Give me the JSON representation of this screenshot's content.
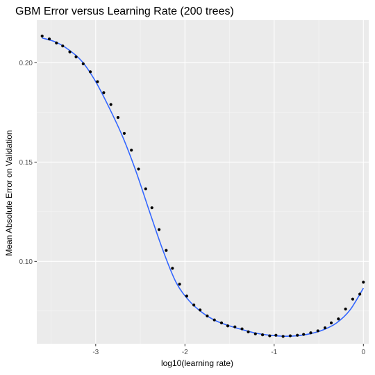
{
  "chart_data": {
    "type": "scatter",
    "title": "GBM Error versus Learning Rate (200 trees)",
    "xlabel": "log10(learning rate)",
    "ylabel": "Mean Absolute Error on Validation",
    "xlim": [
      -3.66,
      0.06
    ],
    "ylim": [
      0.0585,
      0.2215
    ],
    "x_ticks": [
      -3,
      -2,
      -1,
      0
    ],
    "x_tick_labels": [
      "-3",
      "-2",
      "-1",
      "0"
    ],
    "y_ticks": [
      0.1,
      0.15,
      0.2
    ],
    "y_tick_labels": [
      "0.10",
      "0.15",
      "0.20"
    ],
    "grid": true,
    "legend": "none",
    "series": [
      {
        "kind": "points",
        "points": [
          [
            -3.6,
            0.2135
          ],
          [
            -3.52,
            0.212
          ],
          [
            -3.44,
            0.21
          ],
          [
            -3.37,
            0.2085
          ],
          [
            -3.29,
            0.2055
          ],
          [
            -3.22,
            0.203
          ],
          [
            -3.14,
            0.1995
          ],
          [
            -3.06,
            0.1955
          ],
          [
            -2.98,
            0.1905
          ],
          [
            -2.91,
            0.185
          ],
          [
            -2.83,
            0.179
          ],
          [
            -2.75,
            0.1725
          ],
          [
            -2.68,
            0.1645
          ],
          [
            -2.6,
            0.156
          ],
          [
            -2.52,
            0.1465
          ],
          [
            -2.44,
            0.1365
          ],
          [
            -2.37,
            0.127
          ],
          [
            -2.29,
            0.116
          ],
          [
            -2.21,
            0.1055
          ],
          [
            -2.14,
            0.0965
          ],
          [
            -2.06,
            0.0885
          ],
          [
            -1.98,
            0.0825
          ],
          [
            -1.9,
            0.078
          ],
          [
            -1.83,
            0.0755
          ],
          [
            -1.75,
            0.0725
          ],
          [
            -1.67,
            0.0705
          ],
          [
            -1.59,
            0.069
          ],
          [
            -1.52,
            0.0675
          ],
          [
            -1.44,
            0.067
          ],
          [
            -1.36,
            0.066
          ],
          [
            -1.29,
            0.0645
          ],
          [
            -1.21,
            0.0635
          ],
          [
            -1.13,
            0.063
          ],
          [
            -1.05,
            0.0625
          ],
          [
            -0.98,
            0.0628
          ],
          [
            -0.9,
            0.0622
          ],
          [
            -0.82,
            0.0625
          ],
          [
            -0.74,
            0.0628
          ],
          [
            -0.67,
            0.0632
          ],
          [
            -0.59,
            0.064
          ],
          [
            -0.51,
            0.065
          ],
          [
            -0.43,
            0.0665
          ],
          [
            -0.36,
            0.069
          ],
          [
            -0.28,
            0.071
          ],
          [
            -0.2,
            0.076
          ],
          [
            -0.12,
            0.081
          ],
          [
            -0.04,
            0.0835
          ],
          [
            0.0,
            0.0895
          ]
        ]
      },
      {
        "kind": "smooth",
        "color": "#3366ff",
        "points": [
          [
            -3.6,
            0.2125
          ],
          [
            -3.45,
            0.2105
          ],
          [
            -3.3,
            0.2065
          ],
          [
            -3.15,
            0.2005
          ],
          [
            -3.0,
            0.1905
          ],
          [
            -2.85,
            0.1775
          ],
          [
            -2.7,
            0.163
          ],
          [
            -2.55,
            0.1455
          ],
          [
            -2.4,
            0.1255
          ],
          [
            -2.25,
            0.106
          ],
          [
            -2.1,
            0.0895
          ],
          [
            -1.95,
            0.08
          ],
          [
            -1.8,
            0.074
          ],
          [
            -1.65,
            0.07
          ],
          [
            -1.5,
            0.0675
          ],
          [
            -1.35,
            0.0655
          ],
          [
            -1.2,
            0.0638
          ],
          [
            -1.05,
            0.0628
          ],
          [
            -0.9,
            0.0623
          ],
          [
            -0.75,
            0.0625
          ],
          [
            -0.6,
            0.0635
          ],
          [
            -0.45,
            0.0655
          ],
          [
            -0.3,
            0.069
          ],
          [
            -0.15,
            0.0755
          ],
          [
            0.0,
            0.0865
          ]
        ]
      }
    ]
  }
}
